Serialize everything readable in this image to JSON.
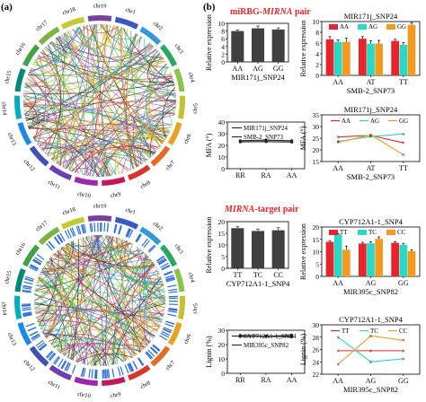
{
  "figure": {
    "panel_a_label": "(a)",
    "panel_b_label": "(b)",
    "section1_label": "miRBG-",
    "section1_label_italic": "MIRNA",
    "section1_label_tail": " pair",
    "section2_label_italic": "MIRNA",
    "section2_label_tail": "-target pair",
    "colors": {
      "red": "#e8242a",
      "orange": "#f39a21",
      "cyan": "#2ad8c8",
      "dark": "#404040"
    }
  },
  "circos": [
    {
      "chromosomes": [
        "chr19",
        "chr1",
        "chr2",
        "chr3",
        "chr4",
        "chr5",
        "chr6",
        "chr7",
        "chr8",
        "chr9",
        "chr10",
        "chr11",
        "chr12",
        "chr13",
        "chr14",
        "chr15",
        "chr16",
        "chr17",
        "chr18"
      ]
    },
    {
      "chromosomes": [
        "chr19",
        "chr1",
        "chr2",
        "chr3",
        "chr4",
        "chr5",
        "chr6",
        "chr7",
        "chr8",
        "chr9",
        "chr10",
        "chr11",
        "chr12",
        "chr13",
        "chr14",
        "chr15",
        "chr16",
        "chr17",
        "chr18"
      ]
    }
  ],
  "chart_data": [
    {
      "id": "c1",
      "type": "bar",
      "xlabel": "MIR171j_SNP24",
      "ylabel": "Relative expression",
      "categories": [
        "AA",
        "AG",
        "GG"
      ],
      "values": [
        8.0,
        8.7,
        8.4
      ],
      "errors": [
        0.3,
        0.6,
        0.4
      ],
      "ylim": [
        0,
        10
      ],
      "yticks": [
        0,
        2,
        4,
        6,
        8,
        10
      ]
    },
    {
      "id": "c2",
      "type": "bar",
      "title": "MIR171j_SNP24",
      "xlabel": "SMB-2_SNP73",
      "ylabel": "Relative expression",
      "categories": [
        "AA",
        "AT",
        "TT"
      ],
      "ylim": [
        0,
        10
      ],
      "yticks": [
        0,
        2,
        4,
        6,
        8,
        10
      ],
      "series": [
        {
          "name": "AA",
          "values": [
            6.7,
            6.8,
            6.4
          ],
          "errors": [
            0.5,
            0.4,
            0.3
          ]
        },
        {
          "name": "AG",
          "values": [
            6.2,
            5.9,
            5.7
          ],
          "errors": [
            0.4,
            0.5,
            0.4
          ]
        },
        {
          "name": "GG",
          "values": [
            6.2,
            5.9,
            9.4
          ],
          "errors": [
            0.7,
            0.6,
            0.4
          ]
        }
      ]
    },
    {
      "id": "c3",
      "type": "line",
      "xlabel": "",
      "ylabel": "MFA (°)",
      "categories": [
        "RR",
        "RA",
        "AA"
      ],
      "ylim": [
        0,
        40
      ],
      "yticks": [
        0,
        10,
        20,
        30,
        40
      ],
      "legend": "top-left",
      "series": [
        {
          "name": "MIR171j_SNP24",
          "values": [
            24.0,
            24.5,
            24.0
          ]
        },
        {
          "name": "SMB-2_SNP73",
          "values": [
            23.0,
            23.2,
            22.8
          ]
        }
      ]
    },
    {
      "id": "c4",
      "type": "line",
      "title": "MIR171j_SNP24",
      "xlabel": "SMB-2_SNP73",
      "ylabel": "MFA (°)",
      "categories": [
        "AA",
        "AT",
        "TT"
      ],
      "ylim": [
        15,
        35
      ],
      "yticks": [
        15,
        20,
        25,
        30,
        35
      ],
      "legend": "top",
      "series": [
        {
          "name": "AA",
          "values": [
            25.5,
            26.2,
            23.0
          ]
        },
        {
          "name": "AG",
          "values": [
            23.6,
            25.7,
            26.8
          ]
        },
        {
          "name": "GG",
          "values": [
            23.2,
            26.4,
            17.9
          ]
        }
      ]
    },
    {
      "id": "c5",
      "type": "bar",
      "xlabel": "CYP712A1-1_SNP4",
      "ylabel": "Relative expression",
      "categories": [
        "TT",
        "TC",
        "CC"
      ],
      "values": [
        17.2,
        16.0,
        16.3
      ],
      "errors": [
        0.6,
        0.8,
        1.1
      ],
      "ylim": [
        0,
        20
      ],
      "yticks": [
        0,
        5,
        10,
        15,
        20
      ]
    },
    {
      "id": "c6",
      "type": "bar",
      "title": "CYP712A1-1_SNP4",
      "xlabel": "MIR395c_SNP82",
      "ylabel": "Relative expression",
      "categories": [
        "AA",
        "AG",
        "GG"
      ],
      "ylim": [
        0,
        20
      ],
      "yticks": [
        0,
        5,
        10,
        15,
        20
      ],
      "series": [
        {
          "name": "TT",
          "values": [
            14.0,
            13.3,
            13.6
          ],
          "errors": [
            0.5,
            0.5,
            0.5
          ]
        },
        {
          "name": "TC",
          "values": [
            17.0,
            13.4,
            12.8
          ],
          "errors": [
            0.4,
            0.7,
            0.6
          ]
        },
        {
          "name": "CC",
          "values": [
            10.8,
            15.2,
            10.2
          ],
          "errors": [
            1.5,
            0.8,
            0.6
          ]
        }
      ]
    },
    {
      "id": "c7",
      "type": "line",
      "xlabel": "",
      "ylabel": "Lignin (%)",
      "categories": [
        "RR",
        "RA",
        "AA"
      ],
      "ylim": [
        0,
        30
      ],
      "yticks": [
        0,
        10,
        20,
        30
      ],
      "legend": "top-left",
      "series": [
        {
          "name": "CYP712A1-1_SNP4",
          "values": [
            26.4,
            25.8,
            26.4
          ]
        },
        {
          "name": "MIR395c_SNP82",
          "values": [
            25.6,
            25.8,
            25.4
          ]
        }
      ]
    },
    {
      "id": "c8",
      "type": "line",
      "title": "CYP712A1-1_SNP4",
      "xlabel": "MIR395c_SNP82",
      "ylabel": "Lignin (%)",
      "categories": [
        "AA",
        "AG",
        "GG"
      ],
      "ylim": [
        22,
        30
      ],
      "yticks": [
        22,
        24,
        26,
        28,
        30
      ],
      "legend": "top",
      "series": [
        {
          "name": "TT",
          "values": [
            25.8,
            25.8,
            25.8
          ]
        },
        {
          "name": "TC",
          "values": [
            28.0,
            24.0,
            24.5
          ]
        },
        {
          "name": "CC",
          "values": [
            23.6,
            28.2,
            27.5
          ]
        }
      ]
    }
  ]
}
